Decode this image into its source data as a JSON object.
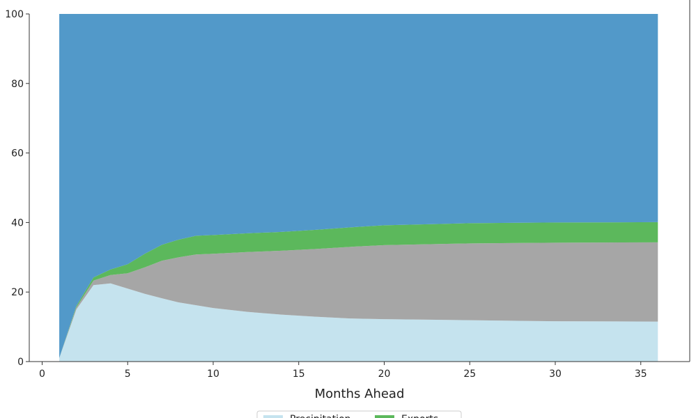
{
  "chart_data": {
    "type": "area",
    "stacked": true,
    "title": "",
    "xlabel": "Months Ahead",
    "ylabel": "",
    "xlim": [
      0,
      37
    ],
    "ylim": [
      0,
      100
    ],
    "xticks": [
      0,
      5,
      10,
      15,
      20,
      25,
      30,
      35
    ],
    "yticks": [
      0,
      20,
      40,
      60,
      80,
      100
    ],
    "grid": false,
    "legend_position": "bottom-center",
    "x": [
      1,
      2,
      3,
      4,
      5,
      6,
      7,
      8,
      9,
      10,
      12,
      14,
      16,
      18,
      20,
      25,
      30,
      36
    ],
    "series": [
      {
        "name": "Precipitation",
        "color": "#c5e3ee",
        "values": [
          1,
          15,
          22,
          22.5,
          21,
          19.5,
          18.2,
          17,
          16.2,
          15.4,
          14.3,
          13.5,
          12.9,
          12.4,
          12.2,
          11.9,
          11.6,
          11.5
        ]
      },
      {
        "name": "",
        "color": "#a6a6a6",
        "values": [
          0,
          0.6,
          1.3,
          2.4,
          4.4,
          7.6,
          10.8,
          13,
          14.6,
          15.6,
          17.2,
          18.4,
          19.5,
          20.6,
          21.3,
          22.1,
          22.6,
          22.8
        ]
      },
      {
        "name": "Exports",
        "color": "#5cb85c",
        "values": [
          0,
          0.4,
          0.9,
          1.6,
          2.6,
          3.9,
          4.6,
          5.1,
          5.4,
          5.4,
          5.4,
          5.4,
          5.5,
          5.6,
          5.7,
          5.8,
          5.8,
          5.8
        ]
      },
      {
        "name": "",
        "color": "#5299c9",
        "values": [
          99,
          84,
          75.8,
          73.5,
          72,
          69,
          66.4,
          64.9,
          63.8,
          63.6,
          63.1,
          62.7,
          62.1,
          61.4,
          60.8,
          60.2,
          60,
          59.9
        ]
      }
    ],
    "legend": [
      {
        "label": "Precipitation",
        "color": "#c5e3ee"
      },
      {
        "label": "Exports",
        "color": "#5cb85c"
      }
    ]
  }
}
